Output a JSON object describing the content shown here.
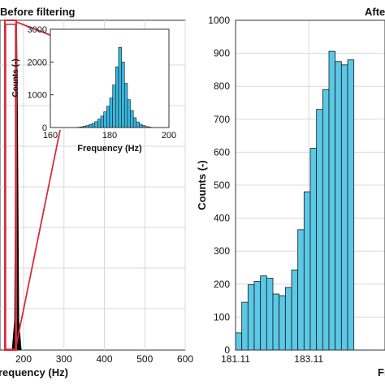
{
  "chart_data": [
    {
      "type": "bar",
      "title": "Before filtering",
      "xlabel": "Frequency (Hz)",
      "ylabel": "",
      "xlim": [
        0,
        600
      ],
      "xticks": [
        "200",
        "300",
        "400",
        "500",
        "600"
      ],
      "grid": true,
      "bar_color": "#000000",
      "highlight_color": "#d62d3f",
      "peak_x": 183
    },
    {
      "type": "bar",
      "title": "",
      "xlabel": "Frequency (Hz)",
      "ylabel": "Counts (-)",
      "xlim": [
        160,
        200
      ],
      "ylim": [
        0,
        3000
      ],
      "xticks": [
        "160",
        "180",
        "200"
      ],
      "yticks": [
        "0",
        "1000",
        "2000",
        "3000"
      ],
      "bar_color": "#35b7e0",
      "bins_x": [
        169.5,
        170.5,
        171.5,
        172.5,
        173.5,
        174.5,
        175.5,
        176.5,
        177.5,
        178.5,
        179.5,
        180.5,
        181.5,
        182.5,
        183.5,
        184.5,
        185.5,
        186.5,
        187.5,
        188.5,
        189.5,
        190.5,
        191.5,
        192.5,
        193.5
      ],
      "values": [
        10,
        20,
        40,
        60,
        90,
        130,
        180,
        260,
        350,
        480,
        650,
        900,
        1300,
        1850,
        2450,
        2000,
        1350,
        850,
        520,
        300,
        170,
        100,
        60,
        30,
        15
      ]
    },
    {
      "type": "bar",
      "title": "After filtering",
      "xlabel": "Frequency (Hz)",
      "ylabel": "Counts (-)",
      "xlim": [
        181.11,
        185.19
      ],
      "ylim": [
        0,
        1000
      ],
      "xticks": [
        "181.11",
        "183.11"
      ],
      "yticks": [
        "0",
        "100",
        "200",
        "300",
        "400",
        "500",
        "600",
        "700",
        "800",
        "900",
        "1000"
      ],
      "grid": true,
      "bar_color": "#5bc8e6",
      "bin_width": 0.17,
      "bins_start": [
        181.11,
        181.28,
        181.45,
        181.62,
        181.79,
        181.96,
        182.13,
        182.3,
        182.47,
        182.64,
        182.81,
        182.98,
        183.15,
        183.32,
        183.49,
        183.66,
        183.83,
        184.0,
        184.17
      ],
      "values": [
        52,
        145,
        198,
        208,
        225,
        218,
        170,
        165,
        190,
        243,
        365,
        480,
        612,
        730,
        790,
        906,
        875,
        865,
        880
      ]
    }
  ]
}
